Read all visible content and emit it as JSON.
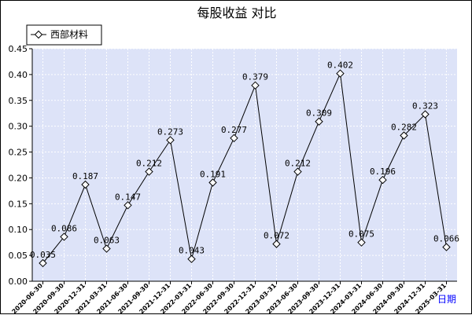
{
  "chart_data": {
    "type": "line",
    "title": "每股收益  对比",
    "xlabel": "日期",
    "ylabel": "",
    "ylim": [
      0,
      0.45
    ],
    "yticks": [
      0.0,
      0.05,
      0.1,
      0.15,
      0.2,
      0.25,
      0.3,
      0.35,
      0.4,
      0.45
    ],
    "grid": true,
    "legend_position": "top-left",
    "colors": {
      "plot_background": "#dde3f8",
      "grid": "#ffffff",
      "line": "#000000",
      "xlabel": "#0000ff"
    },
    "x": [
      "2020-06-30",
      "2020-09-30",
      "2020-12-31",
      "2021-03-31",
      "2021-06-30",
      "2021-09-30",
      "2021-12-31",
      "2022-03-31",
      "2022-06-30",
      "2022-09-30",
      "2022-12-31",
      "2023-03-31",
      "2023-06-30",
      "2023-09-30",
      "2023-12-31",
      "2024-03-31",
      "2024-06-30",
      "2024-09-30",
      "2024-12-31",
      "2025-03-31"
    ],
    "series": [
      {
        "name": "西部材料",
        "values": [
          0.035,
          0.086,
          0.187,
          0.063,
          0.147,
          0.212,
          0.273,
          0.043,
          0.191,
          0.277,
          0.379,
          0.072,
          0.212,
          0.309,
          0.402,
          0.075,
          0.196,
          0.282,
          0.323,
          0.066
        ],
        "labels": [
          "0.035",
          "0.086",
          "0.187",
          "0.063",
          "0.147",
          "0.212",
          "0.273",
          "0.043",
          "0.191",
          "0.277",
          "0.379",
          "0.072",
          "0.212",
          "0.309",
          "0.402",
          "0.075",
          "0.196",
          "0.282",
          "0.323",
          "0.066"
        ]
      }
    ]
  }
}
